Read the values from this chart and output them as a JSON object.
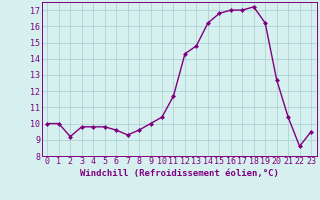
{
  "x": [
    0,
    1,
    2,
    3,
    4,
    5,
    6,
    7,
    8,
    9,
    10,
    11,
    12,
    13,
    14,
    15,
    16,
    17,
    18,
    19,
    20,
    21,
    22,
    23
  ],
  "y": [
    10.0,
    10.0,
    9.2,
    9.8,
    9.8,
    9.8,
    9.6,
    9.3,
    9.6,
    10.0,
    10.4,
    11.7,
    14.3,
    14.8,
    16.2,
    16.8,
    17.0,
    17.0,
    17.2,
    16.2,
    12.7,
    10.4,
    8.6,
    9.5
  ],
  "line_color": "#800080",
  "marker": "D",
  "marker_size": 2.0,
  "bg_color": "#d6efef",
  "grid_color": "#aed4d4",
  "xlabel": "Windchill (Refroidissement éolien,°C)",
  "ylim": [
    8,
    17.5
  ],
  "xlim": [
    -0.5,
    23.5
  ],
  "yticks": [
    8,
    9,
    10,
    11,
    12,
    13,
    14,
    15,
    16,
    17
  ],
  "xticks": [
    0,
    1,
    2,
    3,
    4,
    5,
    6,
    7,
    8,
    9,
    10,
    11,
    12,
    13,
    14,
    15,
    16,
    17,
    18,
    19,
    20,
    21,
    22,
    23
  ],
  "xlabel_fontsize": 6.5,
  "tick_fontsize": 6.0,
  "line_width": 1.0
}
